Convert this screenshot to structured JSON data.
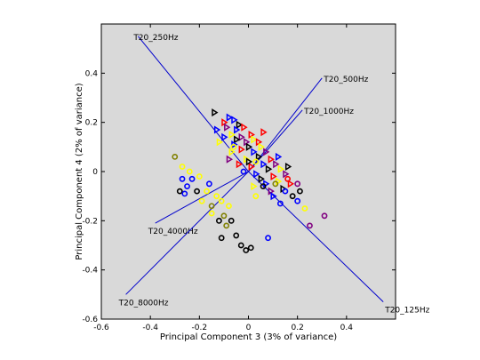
{
  "chart_data": {
    "type": "scatter",
    "xlabel": "Principal Component 3 (3% of variance)",
    "ylabel": "Principal Component 4 (2% of variance)",
    "xlim": [
      -0.6,
      0.6
    ],
    "ylim": [
      -0.6,
      0.6
    ],
    "xticks": [
      "-0.6",
      "-0.4",
      "-0.2",
      "0",
      "0.2",
      "0.4"
    ],
    "yticks": [
      "-0.6",
      "-0.4",
      "-0.2",
      "0",
      "0.2",
      "0.4"
    ],
    "background_color": "#d9d9d9",
    "loading_color": "#0000cc",
    "loadings": [
      {
        "label": "T20_250Hz",
        "x": -0.45,
        "y": 0.55
      },
      {
        "label": "T20_500Hz",
        "x": 0.3,
        "y": 0.38
      },
      {
        "label": "T20_1000Hz",
        "x": 0.22,
        "y": 0.25
      },
      {
        "label": "T20_4000Hz",
        "x": -0.38,
        "y": -0.21
      },
      {
        "label": "T20_8000Hz",
        "x": -0.5,
        "y": -0.5
      },
      {
        "label": "T20_125Hz",
        "x": 0.55,
        "y": -0.53
      }
    ],
    "points": [
      {
        "x": -0.14,
        "y": 0.24,
        "m": "tri",
        "c": "#000000"
      },
      {
        "x": -0.08,
        "y": 0.22,
        "m": "tri",
        "c": "#0000ff"
      },
      {
        "x": -0.06,
        "y": 0.21,
        "m": "tri",
        "c": "#0000ff"
      },
      {
        "x": -0.1,
        "y": 0.2,
        "m": "tri",
        "c": "#ff0000"
      },
      {
        "x": -0.04,
        "y": 0.19,
        "m": "tri",
        "c": "#000000"
      },
      {
        "x": -0.09,
        "y": 0.18,
        "m": "tri",
        "c": "#800080"
      },
      {
        "x": -0.05,
        "y": 0.17,
        "m": "tri",
        "c": "#0000ff"
      },
      {
        "x": -0.02,
        "y": 0.18,
        "m": "tri",
        "c": "#ff0000"
      },
      {
        "x": -0.13,
        "y": 0.17,
        "m": "tri",
        "c": "#0000ff"
      },
      {
        "x": -0.07,
        "y": 0.15,
        "m": "tri",
        "c": "#ffff00"
      },
      {
        "x": -0.03,
        "y": 0.14,
        "m": "tri",
        "c": "#800080"
      },
      {
        "x": 0.01,
        "y": 0.15,
        "m": "tri",
        "c": "#ff0000"
      },
      {
        "x": -0.1,
        "y": 0.14,
        "m": "tri",
        "c": "#0000ff"
      },
      {
        "x": -0.05,
        "y": 0.13,
        "m": "tri",
        "c": "#000000"
      },
      {
        "x": 0.02,
        "y": 0.13,
        "m": "tri",
        "c": "#ffff00"
      },
      {
        "x": -0.01,
        "y": 0.12,
        "m": "tri",
        "c": "#800080"
      },
      {
        "x": 0.04,
        "y": 0.12,
        "m": "tri",
        "c": "#ff0000"
      },
      {
        "x": -0.06,
        "y": 0.11,
        "m": "tri",
        "c": "#0000ff"
      },
      {
        "x": 0.0,
        "y": 0.1,
        "m": "tri",
        "c": "#000000"
      },
      {
        "x": 0.05,
        "y": 0.1,
        "m": "tri",
        "c": "#ffff00"
      },
      {
        "x": -0.03,
        "y": 0.09,
        "m": "tri",
        "c": "#ff0000"
      },
      {
        "x": 0.02,
        "y": 0.08,
        "m": "tri",
        "c": "#0000ff"
      },
      {
        "x": 0.07,
        "y": 0.08,
        "m": "tri",
        "c": "#800080"
      },
      {
        "x": -0.07,
        "y": 0.08,
        "m": "tri",
        "c": "#ffff00"
      },
      {
        "x": 0.04,
        "y": 0.06,
        "m": "tri",
        "c": "#000000"
      },
      {
        "x": 0.09,
        "y": 0.05,
        "m": "tri",
        "c": "#ff0000"
      },
      {
        "x": -0.01,
        "y": 0.05,
        "m": "tri",
        "c": "#ffff00"
      },
      {
        "x": 0.06,
        "y": 0.03,
        "m": "tri",
        "c": "#0000ff"
      },
      {
        "x": 0.11,
        "y": 0.03,
        "m": "tri",
        "c": "#800080"
      },
      {
        "x": 0.01,
        "y": 0.02,
        "m": "tri",
        "c": "#ff0000"
      },
      {
        "x": 0.08,
        "y": 0.01,
        "m": "tri",
        "c": "#000000"
      },
      {
        "x": 0.13,
        "y": 0.01,
        "m": "tri",
        "c": "#ffff00"
      },
      {
        "x": 0.03,
        "y": -0.01,
        "m": "tri",
        "c": "#0000ff"
      },
      {
        "x": 0.1,
        "y": -0.02,
        "m": "tri",
        "c": "#ff0000"
      },
      {
        "x": 0.15,
        "y": -0.01,
        "m": "tri",
        "c": "#800080"
      },
      {
        "x": 0.05,
        "y": -0.03,
        "m": "tri",
        "c": "#000000"
      },
      {
        "x": 0.12,
        "y": -0.04,
        "m": "tri",
        "c": "#ffff00"
      },
      {
        "x": 0.07,
        "y": -0.05,
        "m": "tri",
        "c": "#0000ff"
      },
      {
        "x": 0.17,
        "y": -0.05,
        "m": "tri",
        "c": "#ff0000"
      },
      {
        "x": 0.14,
        "y": -0.07,
        "m": "tri",
        "c": "#000000"
      },
      {
        "x": 0.09,
        "y": -0.08,
        "m": "tri",
        "c": "#800080"
      },
      {
        "x": 0.02,
        "y": -0.06,
        "m": "tri",
        "c": "#ffff00"
      },
      {
        "x": 0.0,
        "y": 0.04,
        "m": "tri",
        "c": "#000000"
      },
      {
        "x": -0.04,
        "y": 0.03,
        "m": "tri",
        "c": "#ff0000"
      },
      {
        "x": 0.12,
        "y": 0.06,
        "m": "tri",
        "c": "#0000ff"
      },
      {
        "x": 0.16,
        "y": 0.02,
        "m": "tri",
        "c": "#000000"
      },
      {
        "x": -0.08,
        "y": 0.05,
        "m": "tri",
        "c": "#800080"
      },
      {
        "x": 0.06,
        "y": 0.16,
        "m": "tri",
        "c": "#ff0000"
      },
      {
        "x": -0.12,
        "y": 0.12,
        "m": "tri",
        "c": "#ffff00"
      },
      {
        "x": 0.1,
        "y": -0.1,
        "m": "tri",
        "c": "#0000ff"
      },
      {
        "x": -0.3,
        "y": 0.06,
        "m": "circ",
        "c": "#808000"
      },
      {
        "x": -0.27,
        "y": 0.02,
        "m": "circ",
        "c": "#ffff00"
      },
      {
        "x": -0.24,
        "y": 0.0,
        "m": "circ",
        "c": "#ffff00"
      },
      {
        "x": -0.27,
        "y": -0.03,
        "m": "circ",
        "c": "#0000ff"
      },
      {
        "x": -0.23,
        "y": -0.03,
        "m": "circ",
        "c": "#0000ff"
      },
      {
        "x": -0.25,
        "y": -0.06,
        "m": "circ",
        "c": "#0000ff"
      },
      {
        "x": -0.28,
        "y": -0.08,
        "m": "circ",
        "c": "#000000"
      },
      {
        "x": -0.26,
        "y": -0.09,
        "m": "circ",
        "c": "#0000ff"
      },
      {
        "x": -0.21,
        "y": -0.08,
        "m": "circ",
        "c": "#000000"
      },
      {
        "x": -0.17,
        "y": -0.08,
        "m": "circ",
        "c": "#ffff00"
      },
      {
        "x": -0.19,
        "y": -0.12,
        "m": "circ",
        "c": "#ffff00"
      },
      {
        "x": -0.15,
        "y": -0.14,
        "m": "circ",
        "c": "#808000"
      },
      {
        "x": -0.11,
        "y": -0.12,
        "m": "circ",
        "c": "#ffff00"
      },
      {
        "x": -0.08,
        "y": -0.14,
        "m": "circ",
        "c": "#ffff00"
      },
      {
        "x": -0.1,
        "y": -0.18,
        "m": "circ",
        "c": "#808000"
      },
      {
        "x": -0.12,
        "y": -0.2,
        "m": "circ",
        "c": "#000000"
      },
      {
        "x": -0.07,
        "y": -0.2,
        "m": "circ",
        "c": "#000000"
      },
      {
        "x": -0.11,
        "y": -0.27,
        "m": "circ",
        "c": "#000000"
      },
      {
        "x": -0.05,
        "y": -0.26,
        "m": "circ",
        "c": "#000000"
      },
      {
        "x": -0.03,
        "y": -0.3,
        "m": "circ",
        "c": "#000000"
      },
      {
        "x": -0.01,
        "y": -0.32,
        "m": "circ",
        "c": "#000000"
      },
      {
        "x": 0.01,
        "y": -0.31,
        "m": "circ",
        "c": "#000000"
      },
      {
        "x": 0.08,
        "y": -0.27,
        "m": "circ",
        "c": "#0000ff"
      },
      {
        "x": -0.06,
        "y": 0.1,
        "m": "circ",
        "c": "#ffff00"
      },
      {
        "x": 0.03,
        "y": -0.1,
        "m": "circ",
        "c": "#ffff00"
      },
      {
        "x": 0.15,
        "y": -0.08,
        "m": "circ",
        "c": "#0000ff"
      },
      {
        "x": 0.18,
        "y": -0.1,
        "m": "circ",
        "c": "#000000"
      },
      {
        "x": 0.2,
        "y": -0.05,
        "m": "circ",
        "c": "#800080"
      },
      {
        "x": 0.21,
        "y": -0.08,
        "m": "circ",
        "c": "#000000"
      },
      {
        "x": 0.2,
        "y": -0.12,
        "m": "circ",
        "c": "#0000ff"
      },
      {
        "x": 0.23,
        "y": -0.15,
        "m": "circ",
        "c": "#ffff00"
      },
      {
        "x": 0.25,
        "y": -0.22,
        "m": "circ",
        "c": "#800080"
      },
      {
        "x": 0.31,
        "y": -0.18,
        "m": "circ",
        "c": "#800080"
      },
      {
        "x": 0.13,
        "y": -0.13,
        "m": "circ",
        "c": "#0000ff"
      },
      {
        "x": 0.06,
        "y": -0.06,
        "m": "circ",
        "c": "#000000"
      },
      {
        "x": 0.11,
        "y": -0.05,
        "m": "circ",
        "c": "#808000"
      },
      {
        "x": 0.16,
        "y": -0.03,
        "m": "circ",
        "c": "#ff0000"
      },
      {
        "x": -0.02,
        "y": 0.0,
        "m": "circ",
        "c": "#0000ff"
      },
      {
        "x": 0.03,
        "y": 0.04,
        "m": "circ",
        "c": "#ffff00"
      },
      {
        "x": -0.16,
        "y": -0.05,
        "m": "circ",
        "c": "#0000ff"
      },
      {
        "x": -0.2,
        "y": -0.02,
        "m": "circ",
        "c": "#ffff00"
      },
      {
        "x": -0.13,
        "y": -0.1,
        "m": "circ",
        "c": "#ffff00"
      },
      {
        "x": -0.15,
        "y": -0.17,
        "m": "circ",
        "c": "#ffff00"
      },
      {
        "x": -0.09,
        "y": -0.22,
        "m": "circ",
        "c": "#808000"
      }
    ]
  }
}
